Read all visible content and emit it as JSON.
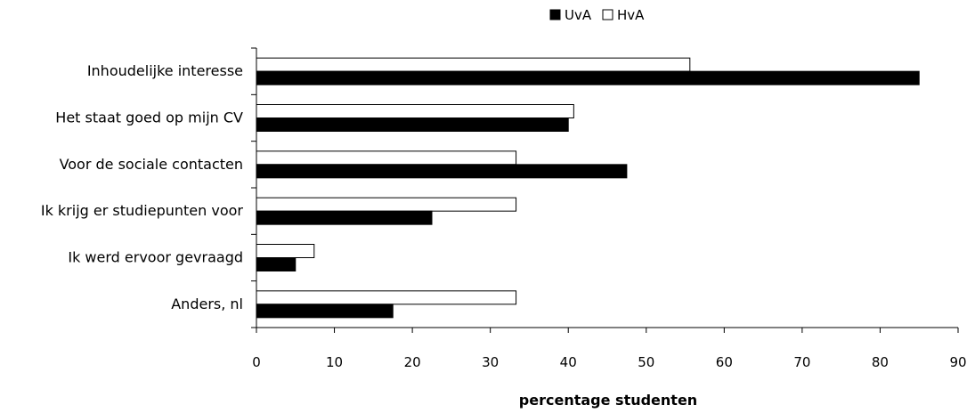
{
  "chart_data": {
    "type": "bar",
    "orientation": "horizontal",
    "categories": [
      "Inhoudelijke interesse",
      "Het staat goed op mijn CV",
      "Voor de sociale contacten",
      "Ik krijg er studiepunten voor",
      "Ik werd ervoor gevraagd",
      "Anders, nl"
    ],
    "series": [
      {
        "name": "UvA",
        "color": "#000000",
        "values": [
          85,
          40,
          47.5,
          22.5,
          5,
          17.5
        ]
      },
      {
        "name": "HvA",
        "color": "#ffffff",
        "values": [
          55.6,
          40.7,
          33.3,
          33.3,
          7.4,
          33.3
        ]
      }
    ],
    "xlabel": "percentage studenten",
    "ylabel": "",
    "xlim": [
      0,
      90
    ],
    "xticks": [
      "0",
      "10",
      "20",
      "30",
      "40",
      "50",
      "60",
      "70",
      "80",
      "90"
    ],
    "grid": false,
    "legend": "top-center"
  }
}
